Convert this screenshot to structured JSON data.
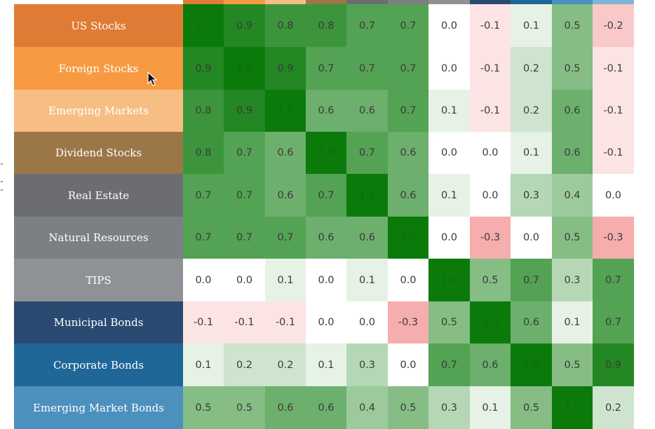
{
  "chart_data": {
    "type": "heatmap",
    "title": "",
    "rows": [
      "US Stocks",
      "Foreign Stocks",
      "Emerging Markets",
      "Dividend Stocks",
      "Real Estate",
      "Natural Resources",
      "TIPS",
      "Municipal Bonds",
      "Corporate Bonds",
      "Emerging Market Bonds"
    ],
    "row_colors": [
      "#e07b35",
      "#f79a42",
      "#f7be84",
      "#9b7747",
      "#6b6d70",
      "#7c7f83",
      "#8e9196",
      "#2a4a72",
      "#1f6796",
      "#4c90bd"
    ],
    "top_strip_colors": [
      "#e07b35",
      "#f79a42",
      "#f7be84",
      "#9b7747",
      "#6b6d70",
      "#7c7f83",
      "#8e9196",
      "#2a4a72",
      "#1f6796",
      "#4c90bd",
      "#7fb4d6"
    ],
    "columns_visible": 11,
    "values": [
      [
        "1.0",
        "0.9",
        "0.8",
        "0.8",
        "0.7",
        "0.7",
        "0.0",
        "-0.1",
        "0.1",
        "0.5",
        "-0.2"
      ],
      [
        "0.9",
        "1.0",
        "0.9",
        "0.7",
        "0.7",
        "0.7",
        "0.0",
        "-0.1",
        "0.2",
        "0.5",
        "-0.1"
      ],
      [
        "0.8",
        "0.9",
        "1.0",
        "0.6",
        "0.6",
        "0.7",
        "0.1",
        "-0.1",
        "0.2",
        "0.6",
        "-0.1"
      ],
      [
        "0.8",
        "0.7",
        "0.6",
        "1.0",
        "0.7",
        "0.6",
        "0.0",
        "0.0",
        "0.1",
        "0.6",
        "-0.1"
      ],
      [
        "0.7",
        "0.7",
        "0.6",
        "0.7",
        "1.0",
        "0.6",
        "0.1",
        "0.0",
        "0.3",
        "0.4",
        "0.0"
      ],
      [
        "0.7",
        "0.7",
        "0.7",
        "0.6",
        "0.6",
        "1.0",
        "0.0",
        "-0.3",
        "0.0",
        "0.5",
        "-0.3"
      ],
      [
        "0.0",
        "0.0",
        "0.1",
        "0.0",
        "0.1",
        "0.0",
        "1.0",
        "0.5",
        "0.7",
        "0.3",
        "0.7"
      ],
      [
        "-0.1",
        "-0.1",
        "-0.1",
        "0.0",
        "0.0",
        "-0.3",
        "0.5",
        "1.0",
        "0.6",
        "0.1",
        "0.7"
      ],
      [
        "0.1",
        "0.2",
        "0.2",
        "0.1",
        "0.3",
        "0.0",
        "0.7",
        "0.6",
        "1.0",
        "0.5",
        "0.9"
      ],
      [
        "0.5",
        "0.5",
        "0.6",
        "0.6",
        "0.4",
        "0.5",
        "0.3",
        "0.1",
        "0.5",
        "1.0",
        "0.2"
      ]
    ],
    "color_scale": {
      "negative": "#f08080",
      "zero": "#ffffff",
      "positive": "#0b7a0b"
    },
    "legend": "none",
    "grid": false
  }
}
